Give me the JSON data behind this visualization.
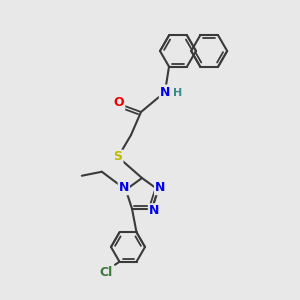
{
  "bg_color": "#e8e8e8",
  "bond_color": "#3a3a3a",
  "atom_colors": {
    "N": "#0000ee",
    "O": "#ee0000",
    "S": "#bbbb00",
    "Cl": "#3a7a3a",
    "C": "#3a3a3a",
    "H": "#3a8a8a"
  }
}
